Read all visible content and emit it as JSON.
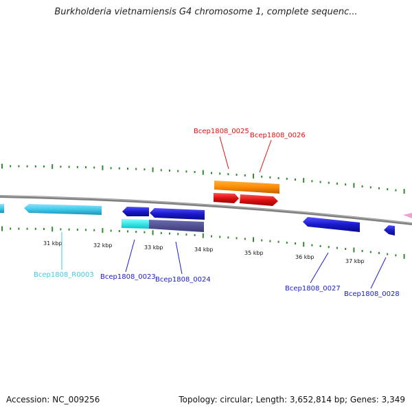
{
  "title": "Burkholderia vietnamiensis G4 chromosome 1, complete sequenc...",
  "accession": "Accession: NC_009256",
  "summary": "Topology: circular; Length: 3,652,814 bp; Genes: 3,349",
  "scale_ticks": [
    "31 kbp",
    "32 kbp",
    "33 kbp",
    "34 kbp",
    "35 kbp",
    "36 kbp",
    "37 kbp"
  ],
  "genes": [
    {
      "label": "Bcep1808_R0003",
      "color": "#3fc8e8"
    },
    {
      "label": "Bcep1808_0023",
      "color": "#1a1acc"
    },
    {
      "label": "Bcep1808_0024",
      "color": "#1a1acc"
    },
    {
      "label": "Bcep1808_0025",
      "color": "#dd1111"
    },
    {
      "label": "Bcep1808_0026",
      "color": "#dd1111"
    },
    {
      "label": "Bcep1808_0027",
      "color": "#1a1acc"
    },
    {
      "label": "Bcep1808_0028",
      "color": "#1a1acc"
    }
  ],
  "colors": {
    "backbone": "#808080",
    "gc_ticks": "#2e8b2e",
    "orange_feature": "#ff8c00",
    "cyan_feature": "#00e5e5",
    "purple_feature": "#4a4a8c"
  }
}
